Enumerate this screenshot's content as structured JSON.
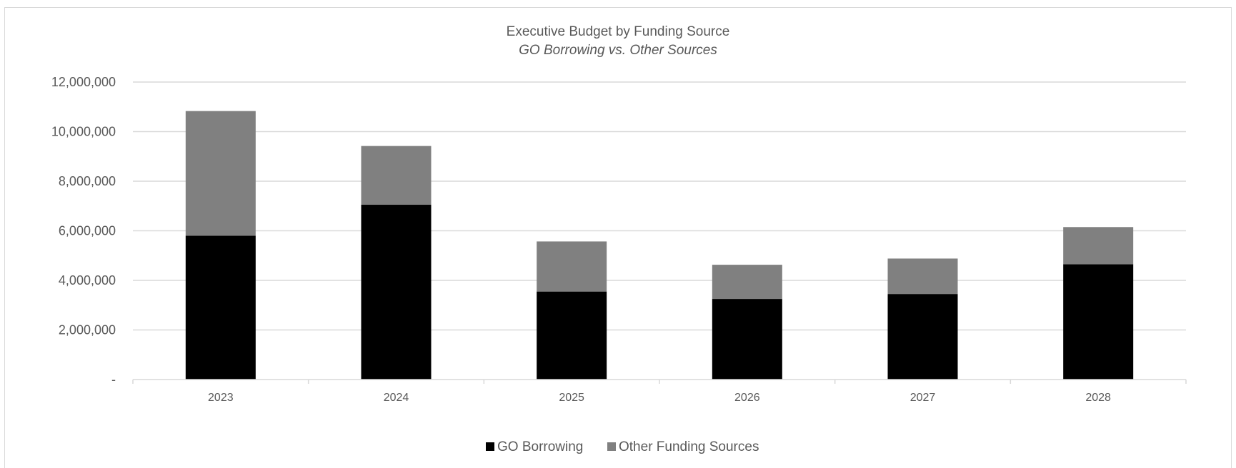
{
  "chart_data": {
    "type": "bar",
    "stacked": true,
    "title": "Executive Budget by Funding Source",
    "subtitle": "GO Borrowing vs. Other Sources",
    "xlabel": "",
    "ylabel": "",
    "categories": [
      "2023",
      "2024",
      "2025",
      "2026",
      "2027",
      "2028"
    ],
    "series": [
      {
        "name": "GO Borrowing",
        "color": "#000000",
        "values": [
          5800000,
          7050000,
          3550000,
          3250000,
          3450000,
          4650000
        ]
      },
      {
        "name": "Other Funding Sources",
        "color": "#808080",
        "values": [
          5030000,
          2370000,
          2020000,
          1380000,
          1430000,
          1500000
        ]
      }
    ],
    "ylim": [
      0,
      12000000
    ],
    "yticks": [
      0,
      2000000,
      4000000,
      6000000,
      8000000,
      10000000,
      12000000
    ],
    "ytick_labels": [
      "-",
      "2,000,000",
      "4,000,000",
      "6,000,000",
      "8,000,000",
      "10,000,000",
      "12,000,000"
    ],
    "grid": true,
    "legend_position": "bottom"
  }
}
